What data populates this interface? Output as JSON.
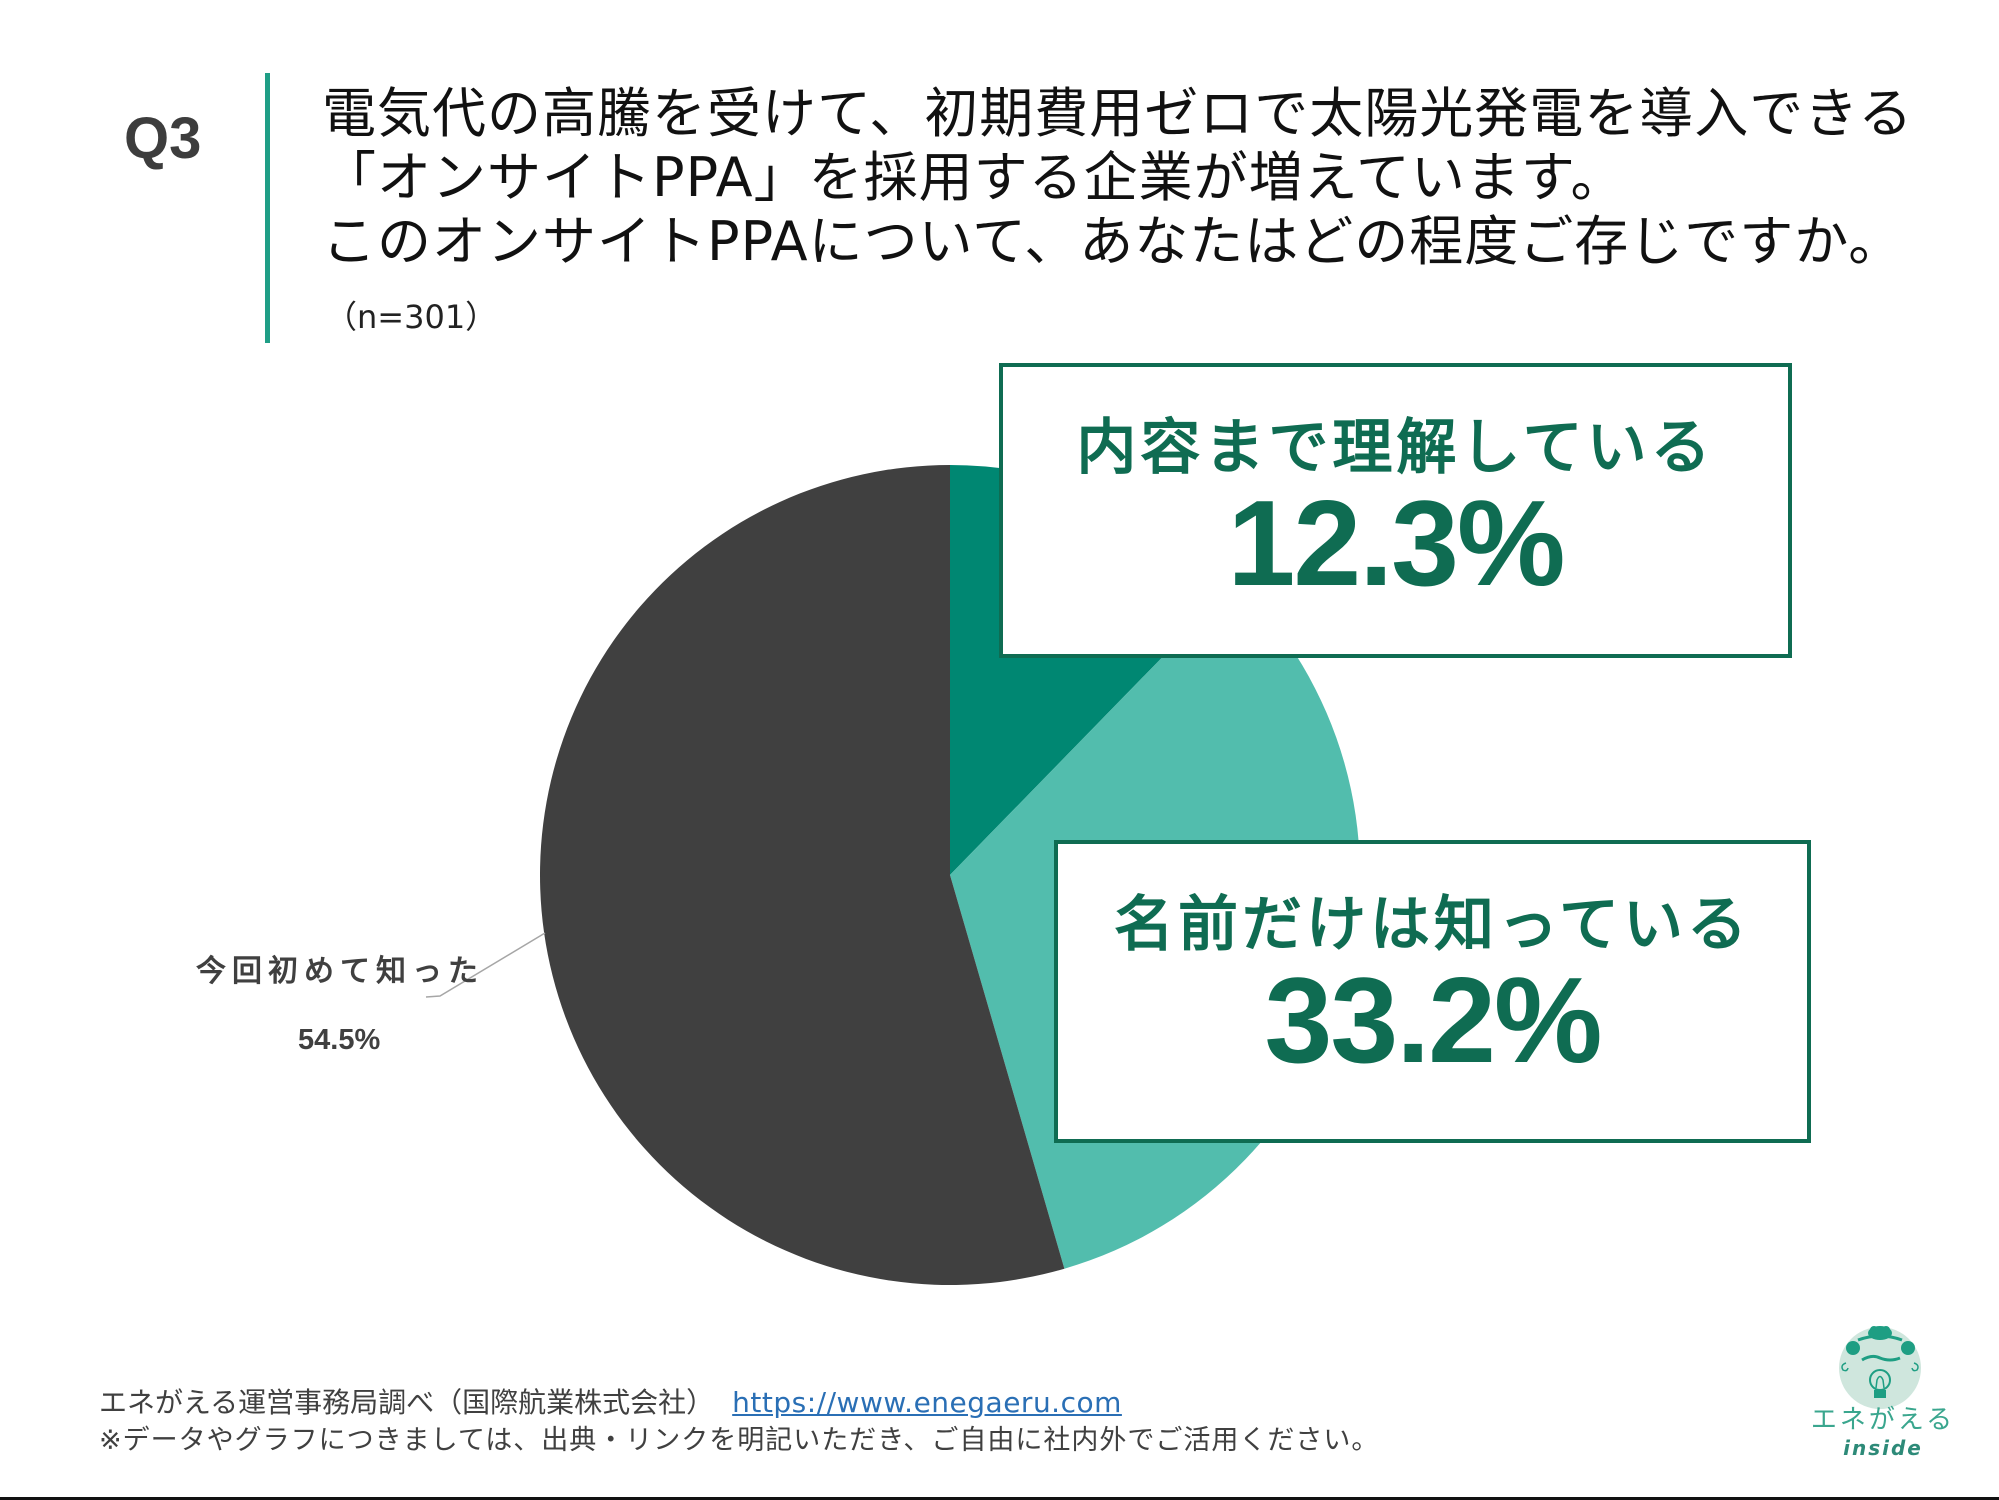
{
  "question": {
    "number": "Q3",
    "lines": [
      "電気代の高騰を受けて、初期費用ゼロで太陽光発電を導入できる",
      "「オンサイトPPA」を採用する企業が増えています。",
      "このオンサイトPPAについて、あなたはどの程度ご存じですか。"
    ],
    "sample_size": "（n=301）"
  },
  "callouts": [
    {
      "label": "内容まで理解している",
      "value": "12.3%"
    },
    {
      "label": "名前だけは知っている",
      "value": "33.2%"
    }
  ],
  "outside_label": {
    "label": "今回初めて知った",
    "value": "54.5%"
  },
  "footer": {
    "source": "エネがえる運営事務局調べ（国際航業株式会社）",
    "link": "https://www.enegaeru.com",
    "note": "※データやグラフにつきましては、出典・リンクを明記いただき、ご自由に社内外でご活用ください。"
  },
  "logo": {
    "name": "エネがえる",
    "sub": "inside"
  },
  "colors": {
    "understand": "#008772",
    "name_only": "#52bdad",
    "first_time": "#404040",
    "callout_border": "#0f6c52",
    "accent_bar": "#1f9e86",
    "link": "#2a6fb5"
  },
  "chart_data": {
    "type": "pie",
    "title": "電気代の高騰を受けて、初期費用ゼロで太陽光発電を導入できる「オンサイトPPA」を採用する企業が増えています。このオンサイトPPAについて、あなたはどの程度ご存じですか。",
    "subtitle": "（n=301）",
    "categories": [
      "内容まで理解している",
      "名前だけは知っている",
      "今回初めて知った"
    ],
    "values": [
      12.3,
      33.2,
      54.5
    ],
    "unit": "%",
    "colors": [
      "#008772",
      "#52bdad",
      "#404040"
    ],
    "start_angle": "12 o'clock, clockwise",
    "n": 301,
    "legend": "none (callout labels)"
  }
}
